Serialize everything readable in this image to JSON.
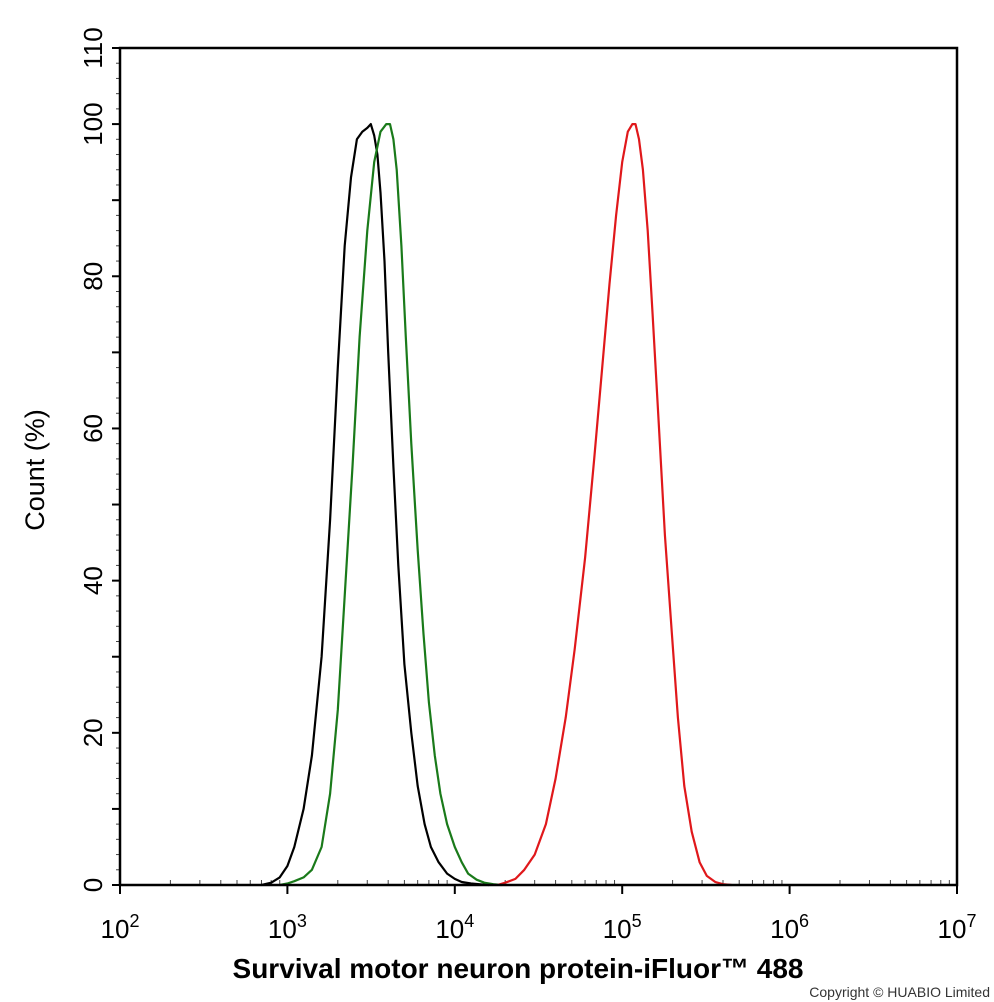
{
  "chart_data": {
    "type": "line",
    "xscale": "log",
    "xlim": [
      100,
      10000000
    ],
    "ylim": [
      0,
      110
    ],
    "xlabel": "Survival motor neuron protein-iFluor™ 488",
    "ylabel": "Count  (%)",
    "x_ticks": [
      {
        "base": "10",
        "exp": "2"
      },
      {
        "base": "10",
        "exp": "3"
      },
      {
        "base": "10",
        "exp": "4"
      },
      {
        "base": "10",
        "exp": "5"
      },
      {
        "base": "10",
        "exp": "6"
      },
      {
        "base": "10",
        "exp": "7"
      }
    ],
    "y_ticks": [
      "0",
      "20",
      "40",
      "60",
      "80",
      "100",
      "110"
    ],
    "grid": false,
    "legend": "none",
    "series": [
      {
        "color": "#000000",
        "x": [
          700,
          800,
          900,
          1000,
          1100,
          1250,
          1400,
          1600,
          1800,
          2000,
          2200,
          2400,
          2600,
          2800,
          3000,
          3150,
          3300,
          3450,
          3600,
          3800,
          4000,
          4300,
          4600,
          5000,
          5500,
          6000,
          6600,
          7200,
          8000,
          9000,
          10000,
          11000,
          12500,
          14000,
          16000
        ],
        "y": [
          0,
          0.3,
          1,
          2.5,
          5,
          10,
          17,
          30,
          48,
          68,
          84,
          93,
          98,
          99,
          99.5,
          100,
          98.5,
          96,
          91,
          82,
          70,
          55,
          42,
          29,
          20,
          13,
          8,
          5,
          3,
          1.5,
          0.8,
          0.4,
          0.2,
          0.1,
          0
        ]
      },
      {
        "color": "#1a7a1a",
        "x": [
          900,
          1000,
          1100,
          1250,
          1400,
          1600,
          1800,
          2000,
          2200,
          2450,
          2700,
          3000,
          3300,
          3600,
          3900,
          4100,
          4300,
          4500,
          4800,
          5100,
          5500,
          6000,
          6500,
          7000,
          7600,
          8200,
          9000,
          10000,
          11000,
          12000,
          13500,
          15000,
          17000,
          19000
        ],
        "y": [
          0,
          0.2,
          0.5,
          1,
          2,
          5,
          12,
          23,
          38,
          55,
          72,
          86,
          95,
          99,
          100,
          100,
          98,
          94,
          84,
          72,
          58,
          44,
          33,
          24,
          17,
          12,
          8,
          5,
          3,
          1.5,
          0.7,
          0.3,
          0.1,
          0
        ]
      },
      {
        "color": "#e0181b",
        "x": [
          18000,
          20000,
          23000,
          26000,
          30000,
          35000,
          40000,
          46000,
          52000,
          60000,
          68000,
          76000,
          84000,
          92000,
          100000,
          108000,
          115000,
          120000,
          126000,
          133000,
          142000,
          152000,
          165000,
          180000,
          198000,
          215000,
          235000,
          260000,
          290000,
          320000,
          360000,
          400000,
          450000
        ],
        "y": [
          0,
          0.3,
          0.8,
          2,
          4,
          8,
          14,
          22,
          31,
          43,
          56,
          68,
          79,
          88,
          95,
          99,
          100,
          100,
          98,
          94,
          86,
          75,
          61,
          46,
          33,
          22,
          13,
          7,
          3,
          1.2,
          0.4,
          0.1,
          0
        ]
      }
    ]
  },
  "copyright": "Copyright © HUABIO Limited"
}
